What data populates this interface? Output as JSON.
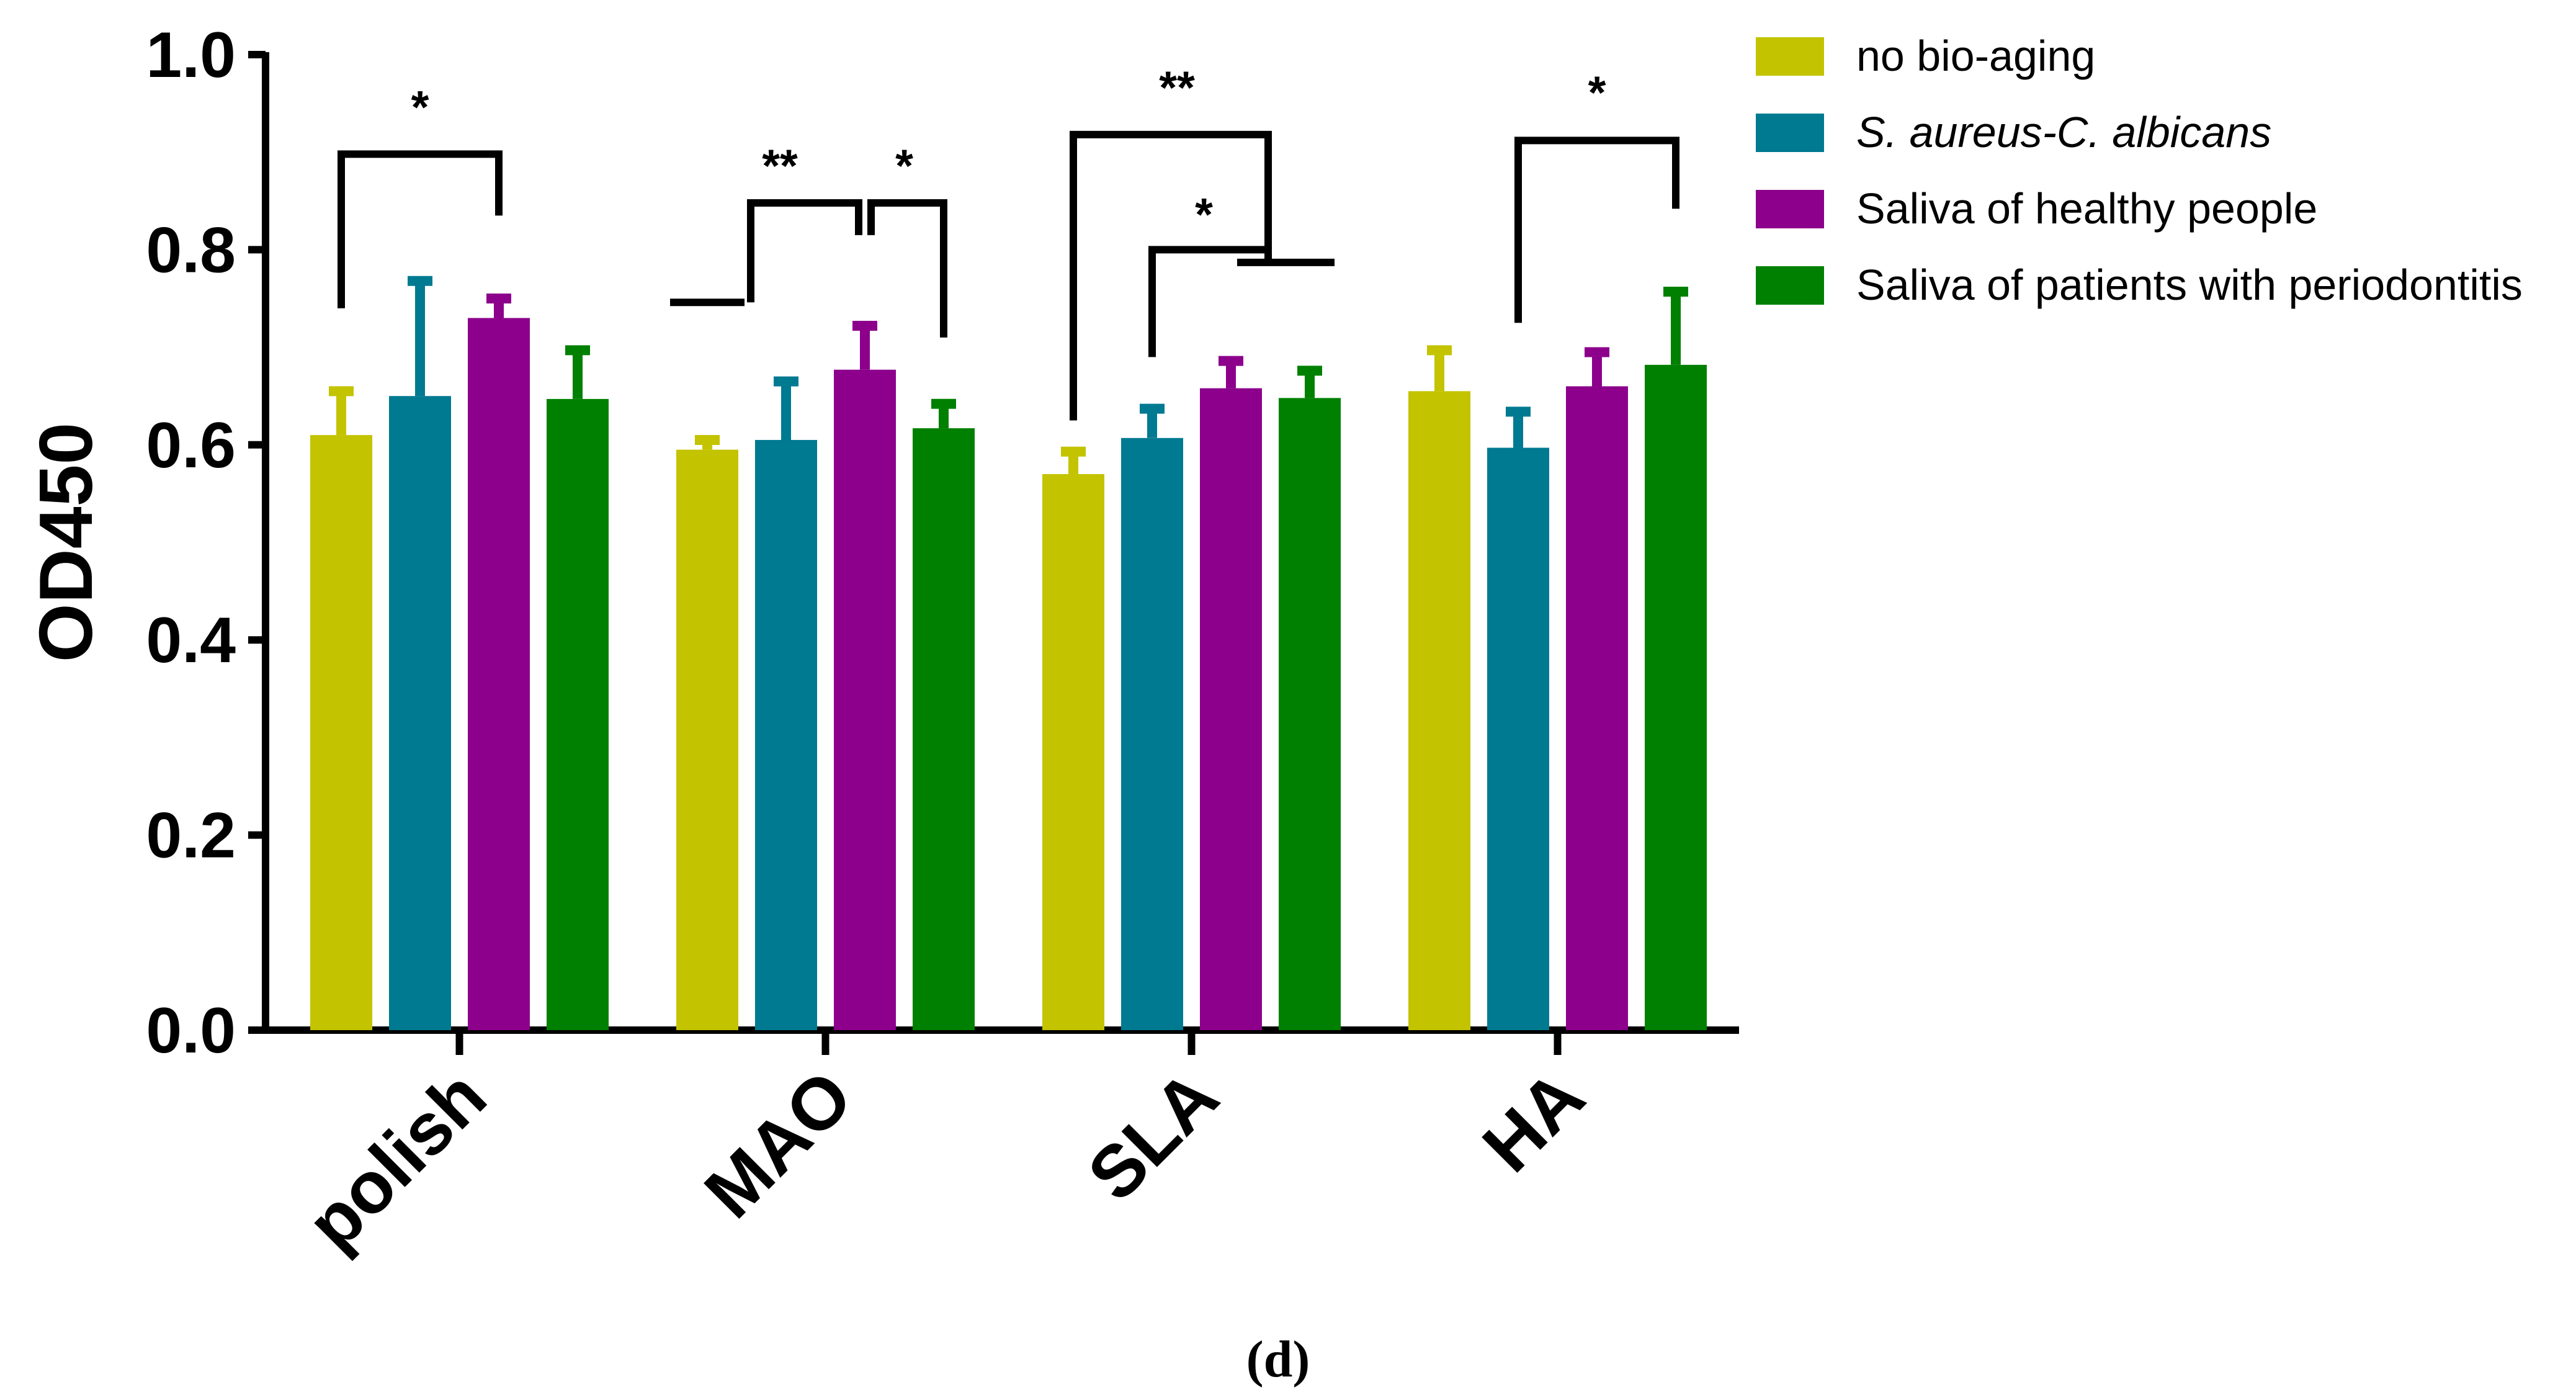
{
  "chart_data": {
    "type": "bar",
    "title": "",
    "xlabel": "",
    "ylabel": "OD450",
    "ylim": [
      0,
      1.0
    ],
    "yticks": [
      "0.0",
      "0.2",
      "0.4",
      "0.6",
      "0.8",
      "1.0"
    ],
    "categories": [
      "polish",
      "MAO",
      "SLA",
      "HA"
    ],
    "series": [
      {
        "name": "no bio-aging",
        "color": "#c3c300",
        "values": [
          0.61,
          0.595,
          0.57,
          0.655
        ],
        "errors": [
          0.045,
          0.01,
          0.023,
          0.042
        ]
      },
      {
        "name": "S. aureus-C. albicans",
        "color": "#007a91",
        "values": [
          0.65,
          0.605,
          0.607,
          0.597
        ],
        "errors": [
          0.118,
          0.06,
          0.03,
          0.037
        ]
      },
      {
        "name": "Saliva of healthy people",
        "color": "#8c008c",
        "values": [
          0.73,
          0.677,
          0.658,
          0.66
        ],
        "errors": [
          0.02,
          0.045,
          0.028,
          0.035
        ]
      },
      {
        "name": "Saliva of patients with periodontitis",
        "color": "#008000",
        "values": [
          0.647,
          0.617,
          0.648,
          0.682
        ],
        "errors": [
          0.05,
          0.025,
          0.028,
          0.075
        ]
      }
    ],
    "significance": [
      {
        "category": "polish",
        "label": "*"
      },
      {
        "category": "MAO",
        "label": "**"
      },
      {
        "category": "MAO",
        "label": "*"
      },
      {
        "category": "SLA",
        "label": "**"
      },
      {
        "category": "SLA",
        "label": "*"
      },
      {
        "category": "HA",
        "label": "*"
      }
    ],
    "legend_position": "top-right",
    "panel_label": "(d)"
  }
}
